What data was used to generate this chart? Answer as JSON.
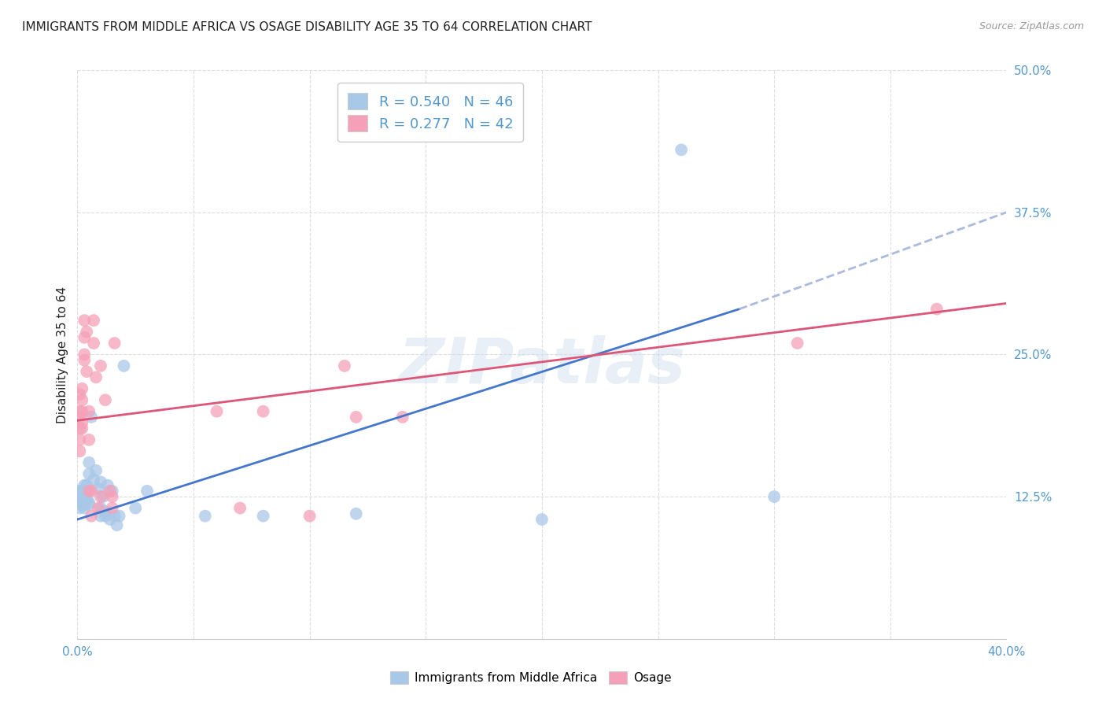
{
  "title": "IMMIGRANTS FROM MIDDLE AFRICA VS OSAGE DISABILITY AGE 35 TO 64 CORRELATION CHART",
  "source": "Source: ZipAtlas.com",
  "ylabel": "Disability Age 35 to 64",
  "xlim": [
    0.0,
    0.4
  ],
  "ylim": [
    0.0,
    0.5
  ],
  "xticks": [
    0.0,
    0.05,
    0.1,
    0.15,
    0.2,
    0.25,
    0.3,
    0.35,
    0.4
  ],
  "xticklabels": [
    "0.0%",
    "",
    "",
    "",
    "",
    "",
    "",
    "",
    "40.0%"
  ],
  "yticks": [
    0.0,
    0.125,
    0.25,
    0.375,
    0.5
  ],
  "yticklabels": [
    "",
    "12.5%",
    "25.0%",
    "37.5%",
    "50.0%"
  ],
  "blue_R": 0.54,
  "blue_N": 46,
  "pink_R": 0.277,
  "pink_N": 42,
  "blue_color": "#a8c8e8",
  "pink_color": "#f5a0b8",
  "blue_line_color": "#4477cc",
  "pink_line_color": "#dd5577",
  "blue_dash_color": "#aabbdd",
  "blue_points": [
    [
      0.001,
      0.13
    ],
    [
      0.001,
      0.125
    ],
    [
      0.001,
      0.115
    ],
    [
      0.001,
      0.12
    ],
    [
      0.001,
      0.128
    ],
    [
      0.001,
      0.122
    ],
    [
      0.002,
      0.118
    ],
    [
      0.002,
      0.13
    ],
    [
      0.002,
      0.125
    ],
    [
      0.002,
      0.12
    ],
    [
      0.003,
      0.135
    ],
    [
      0.003,
      0.128
    ],
    [
      0.003,
      0.118
    ],
    [
      0.003,
      0.115
    ],
    [
      0.004,
      0.122
    ],
    [
      0.004,
      0.13
    ],
    [
      0.004,
      0.135
    ],
    [
      0.005,
      0.155
    ],
    [
      0.005,
      0.145
    ],
    [
      0.005,
      0.12
    ],
    [
      0.005,
      0.118
    ],
    [
      0.006,
      0.195
    ],
    [
      0.007,
      0.14
    ],
    [
      0.008,
      0.148
    ],
    [
      0.009,
      0.132
    ],
    [
      0.01,
      0.138
    ],
    [
      0.01,
      0.115
    ],
    [
      0.01,
      0.108
    ],
    [
      0.011,
      0.125
    ],
    [
      0.012,
      0.112
    ],
    [
      0.012,
      0.108
    ],
    [
      0.013,
      0.135
    ],
    [
      0.014,
      0.105
    ],
    [
      0.015,
      0.13
    ],
    [
      0.016,
      0.108
    ],
    [
      0.017,
      0.1
    ],
    [
      0.018,
      0.108
    ],
    [
      0.02,
      0.24
    ],
    [
      0.025,
      0.115
    ],
    [
      0.03,
      0.13
    ],
    [
      0.055,
      0.108
    ],
    [
      0.08,
      0.108
    ],
    [
      0.12,
      0.11
    ],
    [
      0.2,
      0.105
    ],
    [
      0.26,
      0.43
    ],
    [
      0.3,
      0.125
    ]
  ],
  "pink_points": [
    [
      0.001,
      0.195
    ],
    [
      0.001,
      0.2
    ],
    [
      0.001,
      0.215
    ],
    [
      0.001,
      0.185
    ],
    [
      0.001,
      0.175
    ],
    [
      0.001,
      0.165
    ],
    [
      0.002,
      0.2
    ],
    [
      0.002,
      0.22
    ],
    [
      0.002,
      0.185
    ],
    [
      0.002,
      0.21
    ],
    [
      0.002,
      0.19
    ],
    [
      0.003,
      0.28
    ],
    [
      0.003,
      0.265
    ],
    [
      0.003,
      0.25
    ],
    [
      0.003,
      0.245
    ],
    [
      0.004,
      0.27
    ],
    [
      0.004,
      0.235
    ],
    [
      0.005,
      0.2
    ],
    [
      0.005,
      0.175
    ],
    [
      0.005,
      0.13
    ],
    [
      0.006,
      0.13
    ],
    [
      0.006,
      0.108
    ],
    [
      0.007,
      0.28
    ],
    [
      0.007,
      0.26
    ],
    [
      0.008,
      0.23
    ],
    [
      0.009,
      0.115
    ],
    [
      0.01,
      0.125
    ],
    [
      0.01,
      0.24
    ],
    [
      0.012,
      0.21
    ],
    [
      0.014,
      0.13
    ],
    [
      0.015,
      0.115
    ],
    [
      0.015,
      0.125
    ],
    [
      0.016,
      0.26
    ],
    [
      0.06,
      0.2
    ],
    [
      0.07,
      0.115
    ],
    [
      0.08,
      0.2
    ],
    [
      0.1,
      0.108
    ],
    [
      0.115,
      0.24
    ],
    [
      0.12,
      0.195
    ],
    [
      0.14,
      0.195
    ],
    [
      0.31,
      0.26
    ],
    [
      0.37,
      0.29
    ]
  ],
  "blue_trendline_solid": [
    [
      0.0,
      0.105
    ],
    [
      0.285,
      0.29
    ]
  ],
  "blue_trendline_dash": [
    [
      0.285,
      0.29
    ],
    [
      0.4,
      0.375
    ]
  ],
  "pink_trendline": [
    [
      0.0,
      0.192
    ],
    [
      0.4,
      0.295
    ]
  ],
  "watermark": "ZIPatlas",
  "background_color": "#ffffff",
  "grid_color": "#dddddd",
  "title_color": "#222222",
  "tick_label_color": "#5599cc"
}
